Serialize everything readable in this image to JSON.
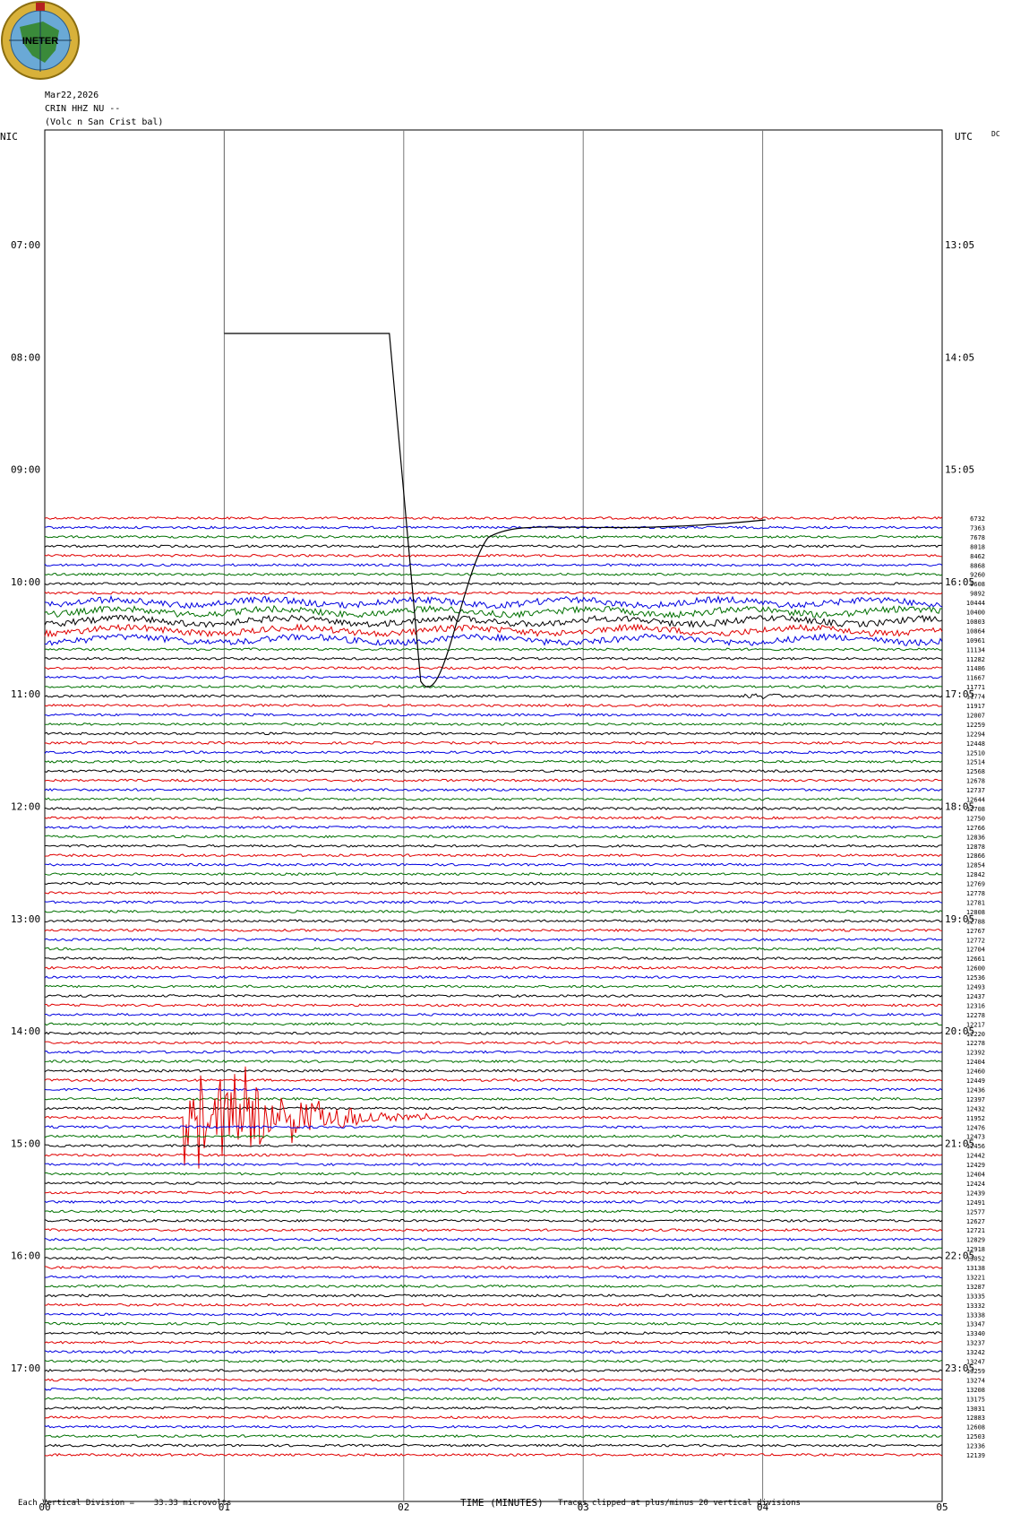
{
  "logo": {
    "text": "INETER",
    "colors": {
      "ring": "#d8b13a",
      "water": "#6aa9d6",
      "land": "#3a8a3a",
      "text": "#000000"
    }
  },
  "header": {
    "date": "Mar22,2026",
    "station": "CRIN HHZ NU --",
    "site": "(Volc n San Crist bal)"
  },
  "labels": {
    "left_zone": "NIC",
    "right_zone": "UTC",
    "dc": "DC",
    "x_axis_title": "TIME (MINUTES)",
    "scale_note": "Each Vertical Division =    33.33 microvolts",
    "clip_note": "Traces clipped at plus/minus 20 vertical divisions"
  },
  "chart_data": {
    "type": "line",
    "title": "",
    "xlabel": "TIME (MINUTES)",
    "xlim": [
      0,
      5
    ],
    "x_ticks": [
      "00",
      "01",
      "02",
      "03",
      "04",
      "05"
    ],
    "left_hour_ticks": [
      "07:00",
      "08:00",
      "09:00",
      "10:00",
      "11:00",
      "12:00",
      "13:00",
      "14:00",
      "15:00",
      "16:00",
      "17:00"
    ],
    "right_hour_ticks": [
      "13:05",
      "14:05",
      "15:05",
      "16:05",
      "17:05",
      "18:05",
      "19:05",
      "20:05",
      "21:05",
      "22:05",
      "23:05"
    ],
    "trace_colors": [
      "#e00000",
      "#0000e0",
      "#007000",
      "#000000"
    ],
    "trace_values": [
      6732,
      7363,
      7678,
      8018,
      8462,
      8868,
      9260,
      9608,
      9892,
      10444,
      10400,
      10803,
      10864,
      10961,
      11134,
      11282,
      11486,
      11667,
      11771,
      11774,
      11917,
      12007,
      12259,
      12294,
      12448,
      12510,
      12514,
      12568,
      12678,
      12737,
      12644,
      12708,
      12750,
      12766,
      12836,
      12878,
      12866,
      12854,
      12842,
      12769,
      12778,
      12781,
      12808,
      12788,
      12767,
      12772,
      12704,
      12661,
      12600,
      12536,
      12493,
      12437,
      12316,
      12278,
      12217,
      12220,
      12278,
      12392,
      12404,
      12460,
      12449,
      12436,
      12397,
      12432,
      11952,
      12476,
      12473,
      12456,
      12442,
      12429,
      12404,
      12424,
      12439,
      12491,
      12577,
      12627,
      12721,
      12829,
      12918,
      13052,
      13138,
      13221,
      13287,
      13335,
      13332,
      13338,
      13347,
      13340,
      13237,
      13242,
      13247,
      13259,
      13274,
      13208,
      13175,
      13031,
      12883,
      12608,
      12503,
      12336,
      12139
    ],
    "calibration_step": {
      "x_start": 1.0,
      "x_end": 1.92,
      "note": "calibration pulse drawn on first trace"
    },
    "events": [
      {
        "trace_index": 64,
        "x_start": 0.77,
        "x_peak": 1.13,
        "x_end": 2.6,
        "clipped": true
      },
      {
        "trace_index": 19,
        "x_start": 3.9,
        "x_end": 4.1,
        "clipped": false
      }
    ]
  }
}
